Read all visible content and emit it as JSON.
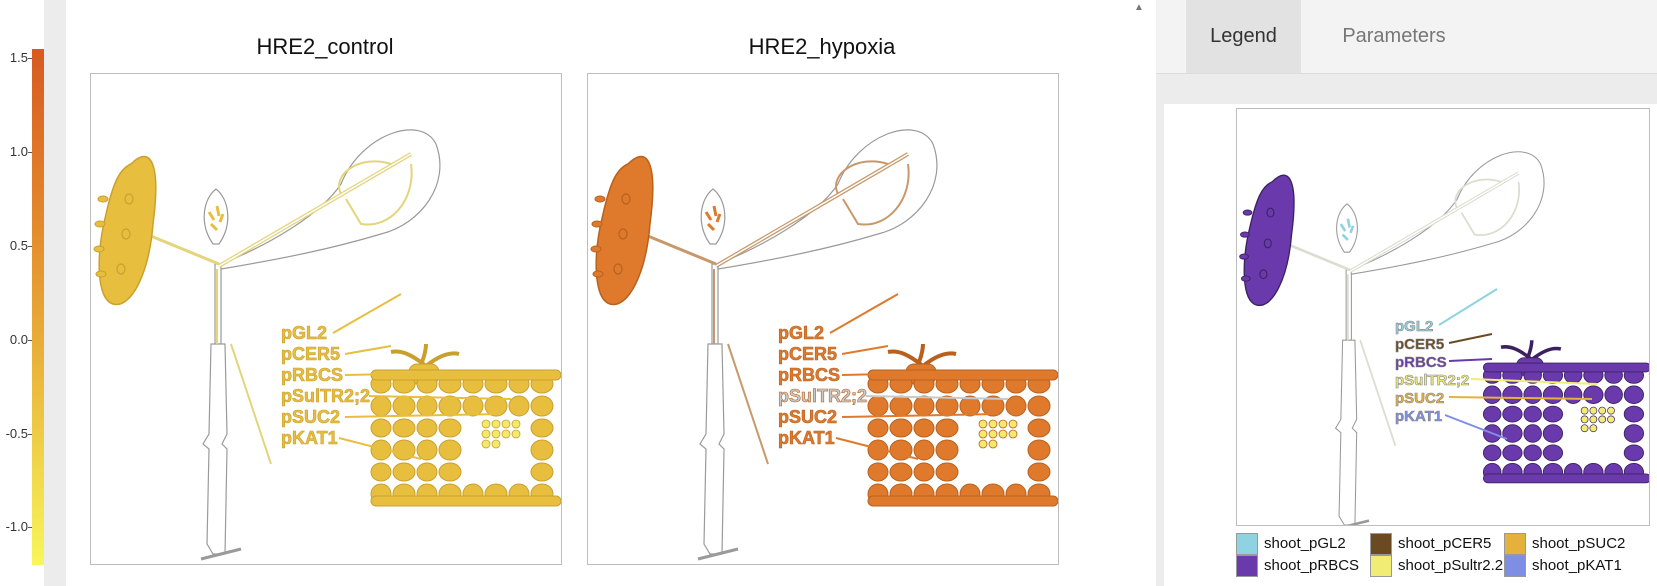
{
  "colorbar": {
    "ticks": [
      {
        "label": "1.5",
        "value": 1.5
      },
      {
        "label": "1.0",
        "value": 1.0
      },
      {
        "label": "0.5",
        "value": 0.5
      },
      {
        "label": "0.0",
        "value": 0.0
      },
      {
        "label": "-0.5",
        "value": -0.5
      },
      {
        "label": "-1.0",
        "value": -1.0
      }
    ],
    "min": -1.2,
    "max": 1.55,
    "colors": [
      "#f8f65a",
      "#f2dd4e",
      "#e9b23a",
      "#e2842a",
      "#d65a22"
    ]
  },
  "panels": [
    {
      "title": "HRE2_control",
      "fill": "#e8be3e",
      "stroke": "#c9a030",
      "rootLine": "#e4d47a"
    },
    {
      "title": "HRE2_hypoxia",
      "fill": "#df7a2c",
      "stroke": "#b8611f",
      "rootLine": "#c7986a"
    }
  ],
  "tissue_labels": [
    "pGL2",
    "pCER5",
    "pRBCS",
    "pSulTR2;2",
    "pSUC2",
    "pKAT1"
  ],
  "tabs": {
    "legend": "Legend",
    "parameters": "Parameters"
  },
  "legend": {
    "items": [
      {
        "label": "shoot_pGL2",
        "color": "#8fd3e2"
      },
      {
        "label": "shoot_pCER5",
        "color": "#6b4a22"
      },
      {
        "label": "shoot_pSUC2",
        "color": "#e4b13c"
      },
      {
        "label": "shoot_pRBCS",
        "color": "#6a3aac"
      },
      {
        "label": "shoot_pSultr2.2",
        "color": "#f0ec74"
      },
      {
        "label": "shoot_pKAT1",
        "color": "#7e8ee4"
      }
    ]
  }
}
